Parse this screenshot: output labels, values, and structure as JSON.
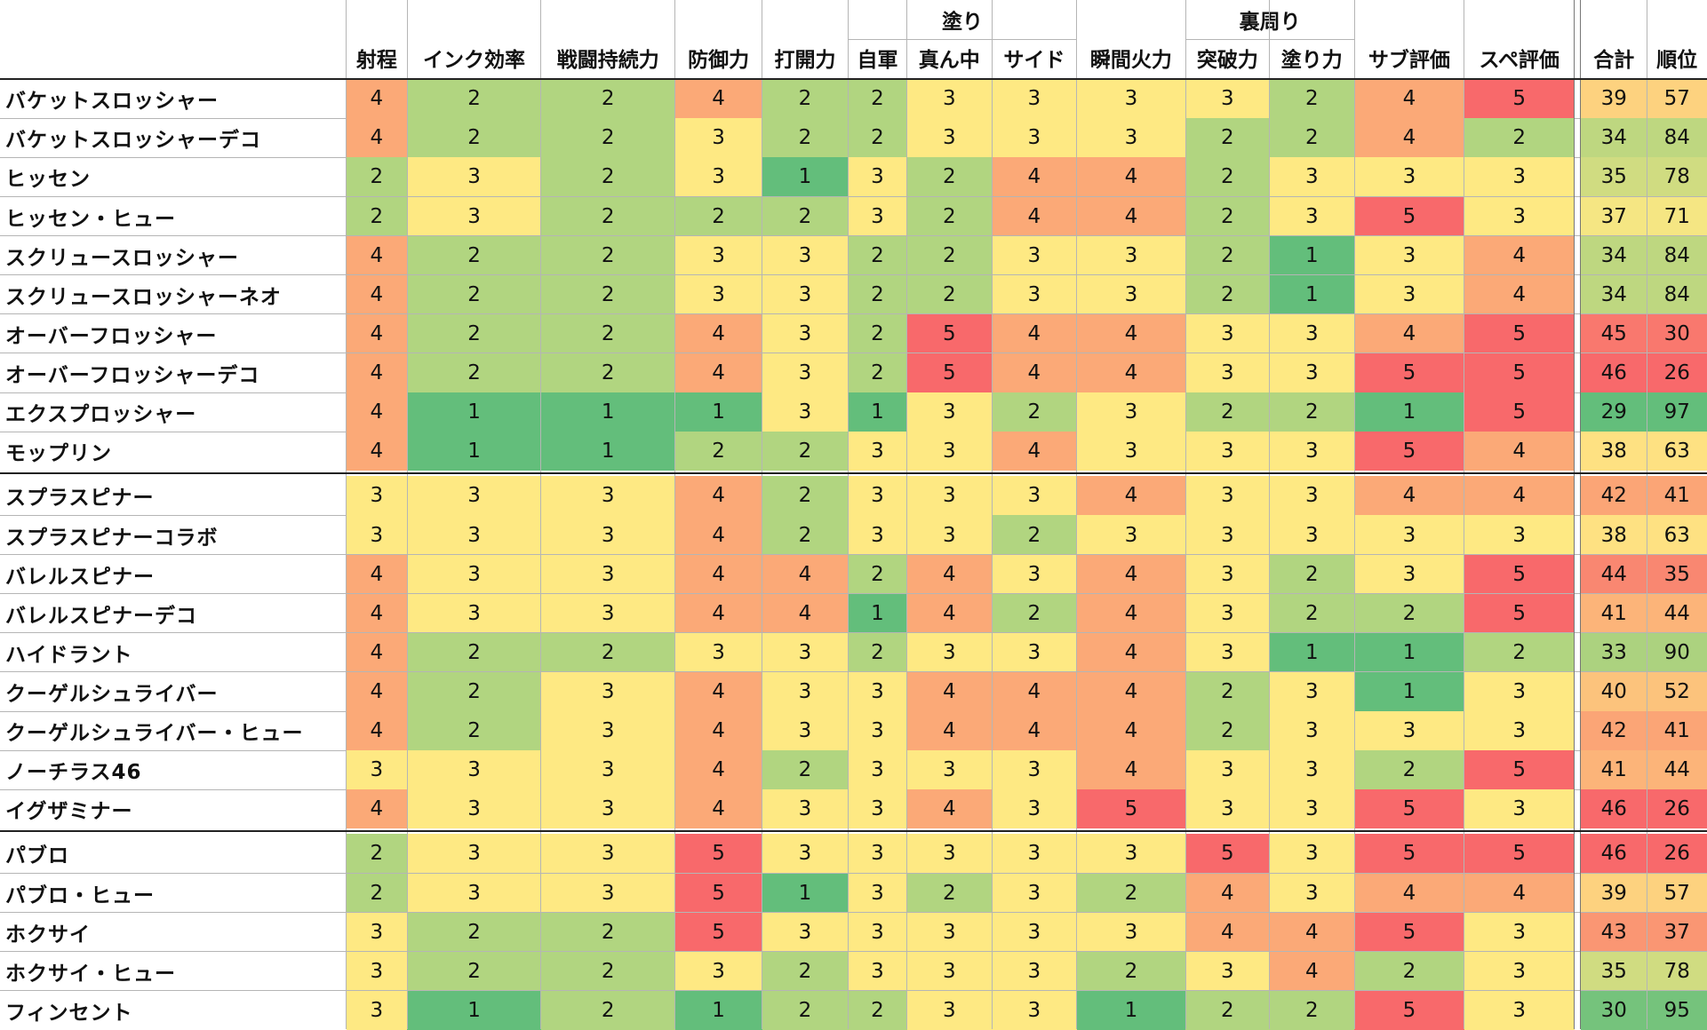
{
  "colors": {
    "1": "#63be7b",
    "2": "#b1d580",
    "3": "#fee983",
    "4": "#fba977",
    "5": "#f8696b",
    "total_low": "#63be7b",
    "total_high": "#f8696b"
  },
  "group_headers": [
    {
      "label": "塗り",
      "span": [
        "自軍",
        "サイド"
      ]
    },
    {
      "label": "裏周り",
      "span": [
        "突破力",
        "塗り力"
      ]
    }
  ],
  "columns": [
    "射程",
    "インク効率",
    "戦闘持続力",
    "防御力",
    "打開力",
    "自軍",
    "真ん中",
    "サイド",
    "瞬間火力",
    "突破力",
    "塗り力",
    "サブ評価",
    "スペ評価",
    "合計",
    "順位"
  ],
  "sections": [
    {
      "rows": [
        {
          "name": "バケットスロッシャー",
          "values": [
            4,
            2,
            2,
            4,
            2,
            2,
            3,
            3,
            3,
            3,
            2,
            4,
            5
          ],
          "total": 39,
          "rank": 57
        },
        {
          "name": "バケットスロッシャーデコ",
          "values": [
            4,
            2,
            2,
            3,
            2,
            2,
            3,
            3,
            3,
            2,
            2,
            4,
            2
          ],
          "total": 34,
          "rank": 84
        },
        {
          "name": "ヒッセン",
          "values": [
            2,
            3,
            2,
            3,
            1,
            3,
            2,
            4,
            4,
            2,
            3,
            3,
            3
          ],
          "total": 35,
          "rank": 78
        },
        {
          "name": "ヒッセン・ヒュー",
          "values": [
            2,
            3,
            2,
            2,
            2,
            3,
            2,
            4,
            4,
            2,
            3,
            5,
            3
          ],
          "total": 37,
          "rank": 71
        },
        {
          "name": "スクリュースロッシャー",
          "values": [
            4,
            2,
            2,
            3,
            3,
            2,
            2,
            3,
            3,
            2,
            1,
            3,
            4
          ],
          "total": 34,
          "rank": 84
        },
        {
          "name": "スクリュースロッシャーネオ",
          "values": [
            4,
            2,
            2,
            3,
            3,
            2,
            2,
            3,
            3,
            2,
            1,
            3,
            4
          ],
          "total": 34,
          "rank": 84
        },
        {
          "name": "オーバーフロッシャー",
          "values": [
            4,
            2,
            2,
            4,
            3,
            2,
            5,
            4,
            4,
            3,
            3,
            4,
            5
          ],
          "total": 45,
          "rank": 30
        },
        {
          "name": "オーバーフロッシャーデコ",
          "values": [
            4,
            2,
            2,
            4,
            3,
            2,
            5,
            4,
            4,
            3,
            3,
            5,
            5
          ],
          "total": 46,
          "rank": 26
        },
        {
          "name": "エクスプロッシャー",
          "values": [
            4,
            1,
            1,
            1,
            3,
            1,
            3,
            2,
            3,
            2,
            2,
            1,
            5
          ],
          "total": 29,
          "rank": 97
        },
        {
          "name": "モップリン",
          "values": [
            4,
            1,
            1,
            2,
            2,
            3,
            3,
            4,
            3,
            3,
            3,
            5,
            4
          ],
          "total": 38,
          "rank": 63
        }
      ]
    },
    {
      "rows": [
        {
          "name": "スプラスピナー",
          "values": [
            3,
            3,
            3,
            4,
            2,
            3,
            3,
            3,
            4,
            3,
            3,
            4,
            4
          ],
          "total": 42,
          "rank": 41
        },
        {
          "name": "スプラスピナーコラボ",
          "values": [
            3,
            3,
            3,
            4,
            2,
            3,
            3,
            2,
            3,
            3,
            3,
            3,
            3
          ],
          "total": 38,
          "rank": 63
        },
        {
          "name": "バレルスピナー",
          "values": [
            4,
            3,
            3,
            4,
            4,
            2,
            4,
            3,
            4,
            3,
            2,
            3,
            5
          ],
          "total": 44,
          "rank": 35
        },
        {
          "name": "バレルスピナーデコ",
          "values": [
            4,
            3,
            3,
            4,
            4,
            1,
            4,
            2,
            4,
            3,
            2,
            2,
            5
          ],
          "total": 41,
          "rank": 44
        },
        {
          "name": "ハイドラント",
          "values": [
            4,
            2,
            2,
            3,
            3,
            2,
            3,
            3,
            4,
            3,
            1,
            1,
            2
          ],
          "total": 33,
          "rank": 90
        },
        {
          "name": "クーゲルシュライバー",
          "values": [
            4,
            2,
            3,
            4,
            3,
            3,
            4,
            4,
            4,
            2,
            3,
            1,
            3
          ],
          "total": 40,
          "rank": 52
        },
        {
          "name": "クーゲルシュライバー・ヒュー",
          "values": [
            4,
            2,
            3,
            4,
            3,
            3,
            4,
            4,
            4,
            2,
            3,
            3,
            3
          ],
          "total": 42,
          "rank": 41
        },
        {
          "name": "ノーチラス46",
          "values": [
            3,
            3,
            3,
            4,
            2,
            3,
            3,
            3,
            4,
            3,
            3,
            2,
            5
          ],
          "total": 41,
          "rank": 44
        },
        {
          "name": "イグザミナー",
          "values": [
            4,
            3,
            3,
            4,
            3,
            3,
            4,
            3,
            5,
            3,
            3,
            5,
            3
          ],
          "total": 46,
          "rank": 26
        }
      ]
    },
    {
      "rows": [
        {
          "name": "パブロ",
          "values": [
            2,
            3,
            3,
            5,
            3,
            3,
            3,
            3,
            3,
            5,
            3,
            5,
            5
          ],
          "total": 46,
          "rank": 26
        },
        {
          "name": "パブロ・ヒュー",
          "values": [
            2,
            3,
            3,
            5,
            1,
            3,
            2,
            3,
            2,
            4,
            3,
            4,
            4
          ],
          "total": 39,
          "rank": 57
        },
        {
          "name": "ホクサイ",
          "values": [
            3,
            2,
            2,
            5,
            3,
            3,
            3,
            3,
            3,
            4,
            4,
            5,
            3
          ],
          "total": 43,
          "rank": 37
        },
        {
          "name": "ホクサイ・ヒュー",
          "values": [
            3,
            2,
            2,
            3,
            2,
            3,
            3,
            3,
            2,
            3,
            4,
            2,
            3
          ],
          "total": 35,
          "rank": 78
        },
        {
          "name": "フィンセント",
          "values": [
            3,
            1,
            2,
            1,
            2,
            2,
            3,
            3,
            1,
            2,
            2,
            5,
            3
          ],
          "total": 30,
          "rank": 95
        }
      ]
    }
  ]
}
